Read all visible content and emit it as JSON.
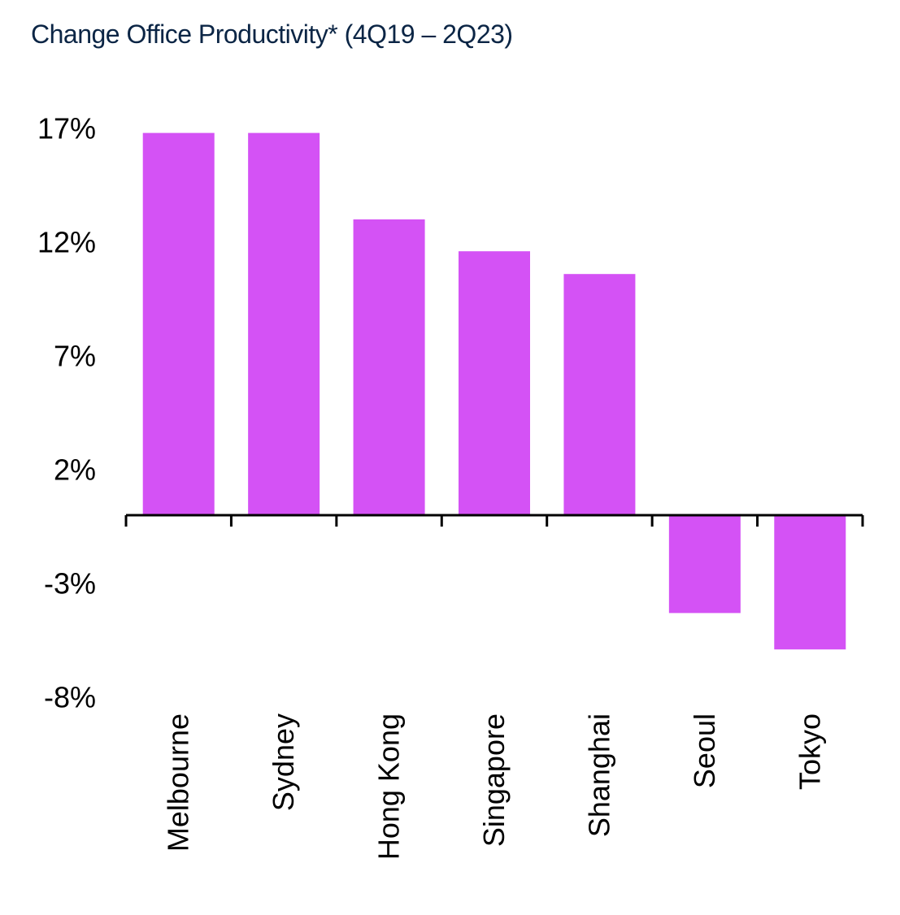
{
  "chart_data": {
    "type": "bar",
    "title": "Change Office Productivity* (4Q19 – 2Q23)",
    "categories": [
      "Melbourne",
      "Sydney",
      "Hong Kong",
      "Singapore",
      "Shanghai",
      "Seoul",
      "Tokyo"
    ],
    "values": [
      16.8,
      16.8,
      13.0,
      11.6,
      10.6,
      -4.3,
      -5.9
    ],
    "yticks": [
      17,
      12,
      7,
      2,
      -3,
      -8
    ],
    "ytick_labels": [
      "17%",
      "12%",
      "7%",
      "2%",
      "-3%",
      "-8%"
    ],
    "ylim": [
      -8,
      17
    ],
    "xlabel": "",
    "ylabel": "",
    "grid": false,
    "bar_color": "#d452f5",
    "axis_color": "#000000",
    "title_color": "#0b2545"
  }
}
